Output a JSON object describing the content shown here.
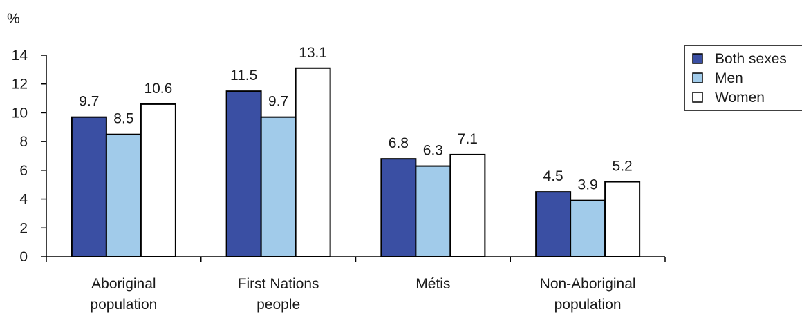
{
  "chart_data": {
    "type": "bar",
    "ylabel": "%",
    "ylim": [
      0,
      14
    ],
    "yticks": [
      0,
      2,
      4,
      6,
      8,
      10,
      12,
      14
    ],
    "grid": false,
    "legend_position": "top-right",
    "categories": [
      [
        "Aboriginal",
        "population"
      ],
      [
        "First Nations",
        "people"
      ],
      [
        "Métis"
      ],
      [
        "Non-Aboriginal",
        "population"
      ]
    ],
    "series": [
      {
        "name": "Both sexes",
        "color": "#3a4fa3",
        "values": [
          9.7,
          11.5,
          6.8,
          4.5
        ]
      },
      {
        "name": "Men",
        "color": "#a1cbea",
        "values": [
          8.5,
          9.7,
          6.3,
          3.9
        ]
      },
      {
        "name": "Women",
        "color": "#ffffff",
        "values": [
          10.6,
          13.1,
          7.1,
          5.2
        ]
      }
    ]
  }
}
